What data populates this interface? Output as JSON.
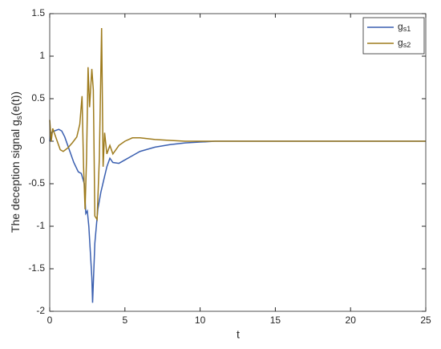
{
  "chart_data": {
    "type": "line",
    "xlabel": "t",
    "ylabel": [
      "The deception signal g",
      "s",
      "(e(t))"
    ],
    "xlim": [
      0,
      25
    ],
    "ylim": [
      -2,
      1.5
    ],
    "xticks": [
      0,
      5,
      10,
      15,
      20,
      25
    ],
    "yticks": [
      -2,
      -1.5,
      -1,
      -0.5,
      0,
      0.5,
      1,
      1.5
    ],
    "legend": "northeast",
    "series": [
      {
        "name": [
          "g",
          "s1"
        ],
        "color": "#3a5fb0",
        "x": [
          0,
          0.1,
          0.3,
          0.6,
          0.8,
          1.0,
          1.3,
          1.6,
          1.9,
          2.1,
          2.3,
          2.4,
          2.5,
          2.6,
          2.7,
          2.8,
          2.85,
          3.0,
          3.2,
          3.4,
          3.6,
          3.8,
          4.0,
          4.2,
          4.6,
          5,
          5.5,
          6,
          7,
          8,
          9,
          10,
          11,
          25
        ],
        "values": [
          0,
          0.1,
          0.12,
          0.14,
          0.12,
          0.05,
          -0.1,
          -0.25,
          -0.36,
          -0.38,
          -0.5,
          -0.85,
          -0.82,
          -1.0,
          -1.3,
          -1.6,
          -1.9,
          -1.2,
          -0.8,
          -0.6,
          -0.45,
          -0.3,
          -0.2,
          -0.25,
          -0.26,
          -0.22,
          -0.17,
          -0.12,
          -0.07,
          -0.04,
          -0.02,
          -0.01,
          0,
          0
        ]
      },
      {
        "name": [
          "g",
          "s2"
        ],
        "color": "#9e7b1c",
        "x": [
          0,
          0.1,
          0.2,
          0.4,
          0.7,
          0.9,
          1.2,
          1.5,
          1.8,
          2.0,
          2.15,
          2.25,
          2.35,
          2.45,
          2.55,
          2.65,
          2.8,
          2.9,
          3.0,
          3.15,
          3.3,
          3.45,
          3.55,
          3.65,
          3.8,
          4.0,
          4.2,
          4.6,
          5.0,
          5.5,
          6,
          7,
          8,
          9,
          25
        ],
        "values": [
          0.25,
          0.0,
          0.15,
          0.05,
          -0.1,
          -0.12,
          -0.08,
          -0.02,
          0.05,
          0.2,
          0.53,
          -0.3,
          -0.8,
          -0.2,
          0.87,
          0.4,
          0.85,
          0.6,
          -0.88,
          -0.92,
          -0.2,
          1.33,
          -0.3,
          0.1,
          -0.15,
          -0.05,
          -0.15,
          -0.05,
          0.0,
          0.04,
          0.04,
          0.02,
          0.01,
          0,
          0
        ]
      }
    ]
  }
}
